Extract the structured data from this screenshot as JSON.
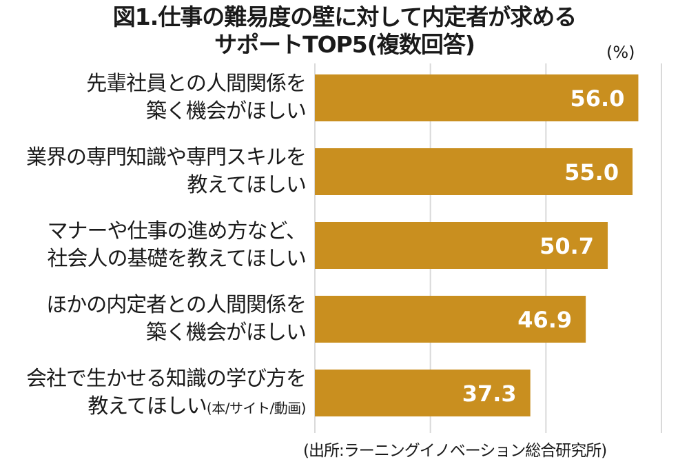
{
  "chart_data": {
    "type": "bar",
    "orientation": "horizontal",
    "title_lines": [
      "図1.仕事の難易度の壁に対して内定者が求める",
      "サポートTOP5(複数回答)"
    ],
    "unit": "(%)",
    "categories": [
      {
        "lines": [
          "先輩社員との人間関係を",
          "築く機会がほしい"
        ],
        "note": ""
      },
      {
        "lines": [
          "業界の専門知識や専門スキルを",
          "教えてほしい"
        ],
        "note": ""
      },
      {
        "lines": [
          "マナーや仕事の進め方など、",
          "社会人の基礎を教えてほしい"
        ],
        "note": ""
      },
      {
        "lines": [
          "ほかの内定者との人間関係を",
          "築く機会がほしい"
        ],
        "note": ""
      },
      {
        "lines": [
          "会社で生かせる知識の学び方を",
          "教えてほしい"
        ],
        "note": "(本/サイト/動画)"
      }
    ],
    "values": [
      56.0,
      55.0,
      50.7,
      46.9,
      37.3
    ],
    "value_labels": [
      "56.0",
      "55.0",
      "50.7",
      "46.9",
      "37.3"
    ],
    "xlim": [
      0,
      60
    ],
    "grid": true,
    "bar_color": "#c98f1f",
    "label_color": "#ffffff",
    "grid_color": "#d9d9d9",
    "source": "(出所:ラーニングイノベーション総合研究所)"
  }
}
